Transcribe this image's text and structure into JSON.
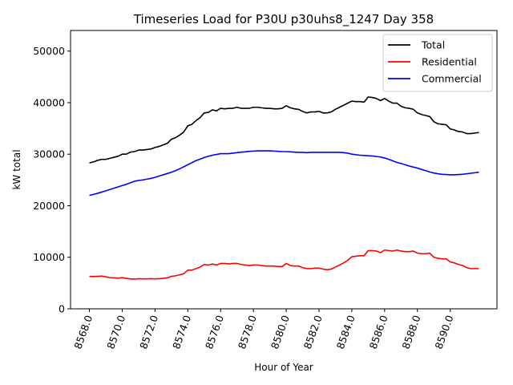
{
  "chart_data": {
    "type": "line",
    "title": "Timeseries Load for P30U p30uhs8_1247  Day 358",
    "xlabel": "Hour of Year",
    "ylabel": "kW total",
    "xlim": [
      8566.85,
      8592.85
    ],
    "ylim": [
      0,
      54000
    ],
    "xticks": [
      8568,
      8570,
      8572,
      8574,
      8576,
      8578,
      8580,
      8582,
      8584,
      8586,
      8588,
      8590
    ],
    "xtick_labels": [
      "8568.0",
      "8570.0",
      "8572.0",
      "8574.0",
      "8576.0",
      "8578.0",
      "8580.0",
      "8582.0",
      "8584.0",
      "8586.0",
      "8588.0",
      "8590.0"
    ],
    "yticks": [
      0,
      10000,
      20000,
      30000,
      40000,
      50000
    ],
    "ytick_labels": [
      "0",
      "10000",
      "20000",
      "30000",
      "40000",
      "50000"
    ],
    "legend_position": "top-right",
    "x_start": 8568.0,
    "x_step": 0.25,
    "series": [
      {
        "name": "Total",
        "color": "#000000",
        "values": [
          28300,
          28500,
          28800,
          29000,
          29000,
          29200,
          29400,
          29600,
          30000,
          30000,
          30400,
          30500,
          30800,
          30800,
          30900,
          31000,
          31300,
          31500,
          31800,
          32100,
          32900,
          33200,
          33700,
          34300,
          35500,
          35800,
          36500,
          37100,
          38000,
          38100,
          38600,
          38400,
          38900,
          38800,
          38900,
          38900,
          39100,
          38900,
          38900,
          38900,
          39100,
          39100,
          39000,
          38900,
          38900,
          38800,
          38800,
          38900,
          39400,
          39000,
          38800,
          38700,
          38300,
          38000,
          38200,
          38200,
          38300,
          38000,
          38000,
          38200,
          38700,
          39100,
          39500,
          39900,
          40300,
          40200,
          40200,
          40100,
          41100,
          41000,
          40800,
          40400,
          40800,
          40300,
          39900,
          39900,
          39300,
          39000,
          38900,
          38700,
          38000,
          37700,
          37500,
          37300,
          36300,
          35900,
          35800,
          35700,
          34900,
          34700,
          34400,
          34300,
          34000,
          34000,
          34100,
          34200
        ]
      },
      {
        "name": "Residential",
        "color": "#ff0000",
        "values": [
          6300,
          6250,
          6300,
          6350,
          6200,
          6050,
          6000,
          5950,
          6050,
          5900,
          5800,
          5750,
          5850,
          5800,
          5800,
          5850,
          5800,
          5850,
          5900,
          6000,
          6300,
          6400,
          6600,
          6800,
          7500,
          7500,
          7800,
          8100,
          8600,
          8500,
          8700,
          8500,
          8800,
          8800,
          8700,
          8800,
          8800,
          8600,
          8500,
          8400,
          8500,
          8500,
          8400,
          8300,
          8300,
          8300,
          8200,
          8200,
          8800,
          8400,
          8300,
          8300,
          8000,
          7800,
          7800,
          7900,
          7900,
          7700,
          7600,
          7700,
          8100,
          8500,
          8900,
          9400,
          10100,
          10200,
          10300,
          10300,
          11300,
          11300,
          11200,
          10900,
          11400,
          11300,
          11200,
          11400,
          11200,
          11100,
          11100,
          11200,
          10800,
          10700,
          10700,
          10800,
          10000,
          9800,
          9700,
          9700,
          9100,
          8900,
          8600,
          8400,
          8000,
          7800,
          7800,
          7800
        ]
      },
      {
        "name": "Commercial",
        "color": "#0000ff",
        "values": [
          22000,
          22200,
          22400,
          22650,
          22900,
          23150,
          23400,
          23650,
          23900,
          24150,
          24450,
          24750,
          24900,
          25000,
          25150,
          25300,
          25500,
          25750,
          26000,
          26250,
          26500,
          26800,
          27150,
          27550,
          27950,
          28350,
          28750,
          29050,
          29350,
          29600,
          29800,
          29950,
          30100,
          30100,
          30100,
          30200,
          30300,
          30400,
          30450,
          30550,
          30600,
          30650,
          30650,
          30650,
          30650,
          30600,
          30550,
          30500,
          30500,
          30450,
          30400,
          30350,
          30350,
          30300,
          30350,
          30350,
          30350,
          30350,
          30350,
          30350,
          30350,
          30350,
          30300,
          30200,
          30000,
          29900,
          29800,
          29750,
          29700,
          29650,
          29550,
          29450,
          29250,
          29000,
          28700,
          28400,
          28200,
          27950,
          27700,
          27500,
          27300,
          27050,
          26800,
          26550,
          26350,
          26200,
          26100,
          26050,
          26000,
          26000,
          26050,
          26100,
          26200,
          26300,
          26400,
          26500
        ]
      }
    ]
  }
}
